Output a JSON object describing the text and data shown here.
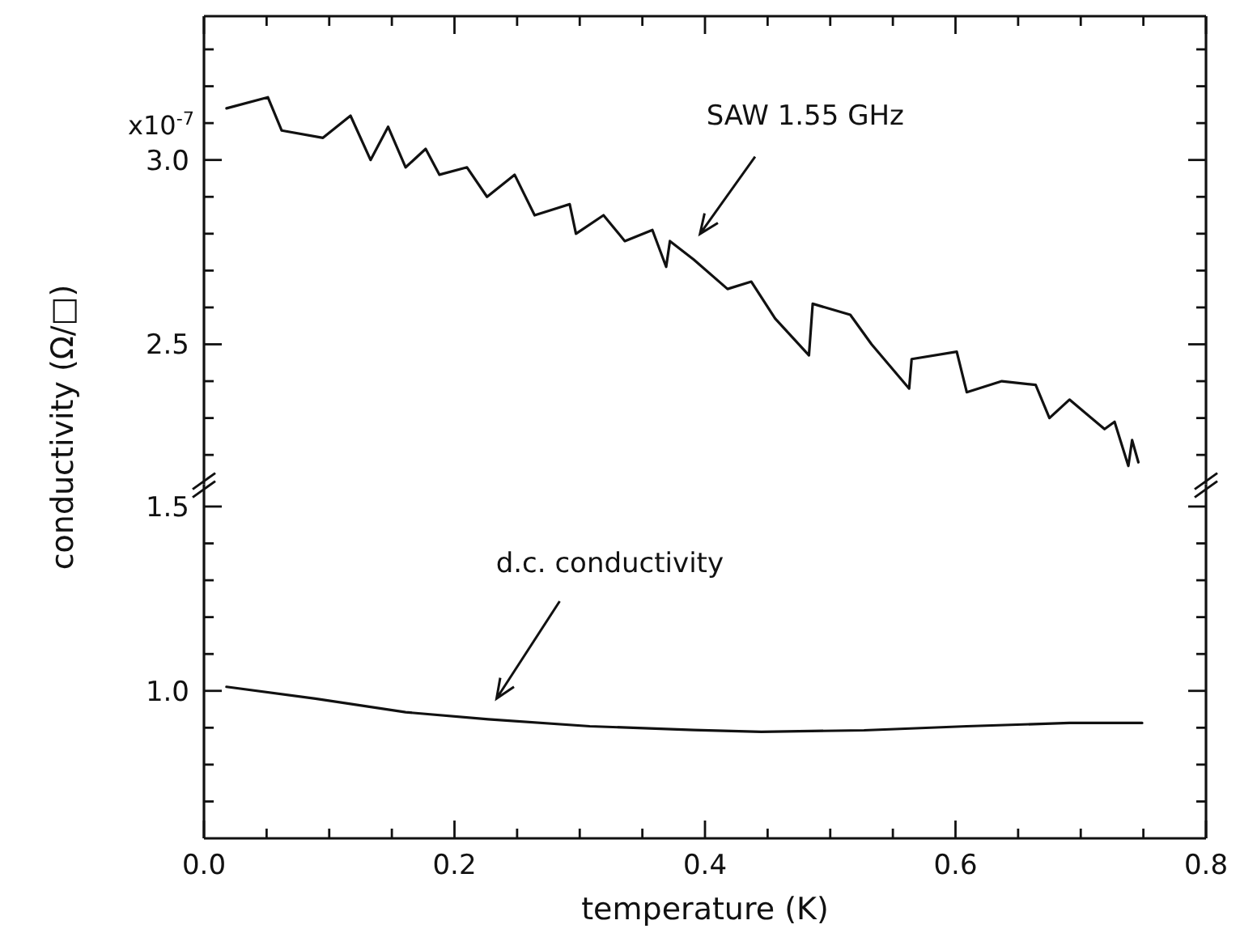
{
  "chart_data": [
    {
      "type": "line",
      "ylabel": "conductivity (Ω/□)",
      "xlim": [
        0,
        0.8
      ],
      "tick_labels": "y",
      "xticks": [
        0,
        {
          "value": 0.05,
          "label": null
        },
        {
          "value": 0.1,
          "label": null
        },
        {
          "value": 0.15,
          "label": null
        },
        0.2,
        {
          "value": 0.25,
          "label": null
        },
        {
          "value": 0.3,
          "label": null
        },
        {
          "value": 0.35,
          "label": null
        },
        0.4,
        {
          "value": 0.45,
          "label": null
        },
        {
          "value": 0.5,
          "label": null
        },
        {
          "value": 0.55,
          "label": null
        },
        0.6,
        {
          "value": 0.65,
          "label": null
        },
        {
          "value": 0.7,
          "label": null
        },
        {
          "value": 0.75,
          "label": null
        },
        0.8
      ],
      "ylim": [
        2.12,
        3.39
      ],
      "yticks": [
        {
          "value": 2.2,
          "label": null
        },
        {
          "value": 2.3,
          "label": null
        },
        {
          "value": 2.4,
          "label": null
        },
        {
          "value": 2.5,
          "label": "2.5"
        },
        {
          "value": 2.6,
          "label": null
        },
        {
          "value": 2.7,
          "label": null
        },
        {
          "value": 2.8,
          "label": null
        },
        {
          "value": 2.9,
          "label": null
        },
        {
          "value": 3.0,
          "label": "3.0"
        },
        {
          "value": 3.1,
          "label": null
        },
        {
          "value": 3.2,
          "label": null
        },
        {
          "value": 3.3,
          "label": null
        }
      ],
      "series": [
        {
          "color": "#111111",
          "x": [
            0.018,
            0.051,
            0.062,
            0.095,
            0.117,
            0.133,
            0.147,
            0.161,
            0.177,
            0.188,
            0.21,
            0.226,
            0.248,
            0.264,
            0.292,
            0.297,
            0.319,
            0.336,
            0.358,
            0.369,
            0.372,
            0.391,
            0.418,
            0.437,
            0.456,
            0.483,
            0.486,
            0.516,
            0.533,
            0.563,
            0.565,
            0.601,
            0.609,
            0.637,
            0.664,
            0.675,
            0.691,
            0.719,
            0.727,
            0.738,
            0.741,
            0.746
          ],
          "values": [
            3.14,
            3.17,
            3.08,
            3.06,
            3.12,
            3.0,
            3.09,
            2.98,
            3.03,
            2.96,
            2.98,
            2.9,
            2.96,
            2.85,
            2.88,
            2.8,
            2.85,
            2.78,
            2.81,
            2.71,
            2.78,
            2.73,
            2.65,
            2.67,
            2.57,
            2.47,
            2.61,
            2.58,
            2.5,
            2.38,
            2.46,
            2.48,
            2.37,
            2.4,
            2.39,
            2.3,
            2.35,
            2.27,
            2.29,
            2.17,
            2.24,
            2.18
          ]
        }
      ],
      "annotations": [
        "SAW 1.55 GHz",
        "x10$^{-7}$"
      ]
    },
    {
      "type": "line",
      "xlabel": "temperature (K)",
      "xlim": [
        0,
        0.8
      ],
      "xticks": [
        {
          "value": 0,
          "label": "0.0"
        },
        {
          "value": 0.05,
          "label": null
        },
        {
          "value": 0.1,
          "label": null
        },
        {
          "value": 0.15,
          "label": null
        },
        0.2,
        {
          "value": 0.25,
          "label": null
        },
        {
          "value": 0.3,
          "label": null
        },
        {
          "value": 0.35,
          "label": null
        },
        0.4,
        {
          "value": 0.45,
          "label": null
        },
        {
          "value": 0.5,
          "label": null
        },
        {
          "value": 0.55,
          "label": null
        },
        0.6,
        {
          "value": 0.65,
          "label": null
        },
        {
          "value": 0.7,
          "label": null
        },
        {
          "value": 0.75,
          "label": null
        },
        0.8
      ],
      "ylim": [
        0.6,
        1.56
      ],
      "yticks": [
        {
          "value": 0.7,
          "label": null
        },
        {
          "value": 0.8,
          "label": null
        },
        {
          "value": 0.9,
          "label": null
        },
        {
          "value": 1.0,
          "label": "1.0"
        },
        {
          "value": 1.1,
          "label": null
        },
        {
          "value": 1.2,
          "label": null
        },
        {
          "value": 1.3,
          "label": null
        },
        {
          "value": 1.4,
          "label": null
        },
        {
          "value": 1.5,
          "label": "1.5"
        }
      ],
      "series": [
        {
          "color": "#111111",
          "x": [
            0.018,
            0.089,
            0.161,
            0.227,
            0.308,
            0.391,
            0.445,
            0.527,
            0.609,
            0.691,
            0.749
          ],
          "values": [
            1.011,
            0.979,
            0.942,
            0.923,
            0.904,
            0.894,
            0.889,
            0.893,
            0.904,
            0.913,
            0.913
          ]
        }
      ],
      "annotations": [
        "d.c. conductivity"
      ]
    }
  ]
}
